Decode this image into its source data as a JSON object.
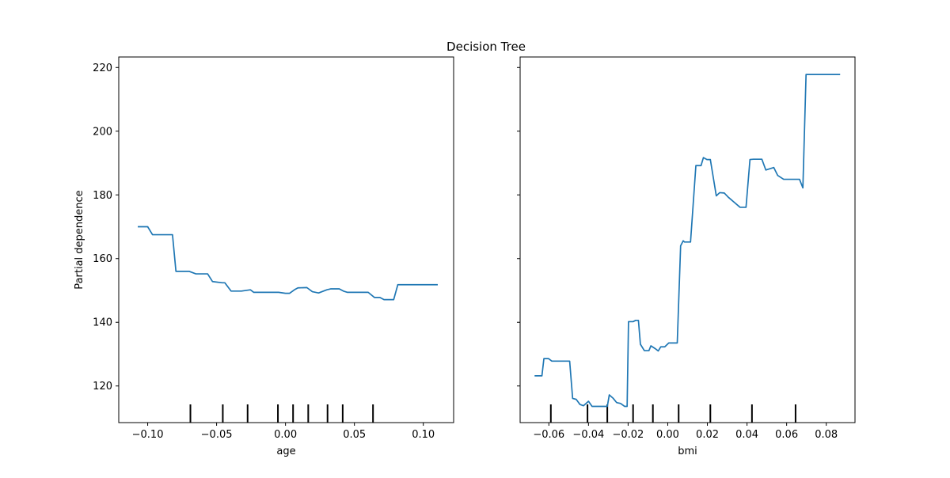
{
  "figure": {
    "title": "Decision Tree",
    "line_color": "#1f77b4"
  },
  "chart_data": [
    {
      "type": "line",
      "title": "",
      "xlabel": "age",
      "ylabel": "Partial dependence",
      "xlim": [
        -0.121,
        0.122
      ],
      "ylim": [
        108.5,
        223.3
      ],
      "xticks": [
        -0.1,
        -0.05,
        0.0,
        0.05,
        0.1
      ],
      "xtick_labels": [
        "−0.10",
        "−0.05",
        "0.00",
        "0.05",
        "0.10"
      ],
      "yticks": [
        120,
        140,
        160,
        180,
        200,
        220
      ],
      "ytick_labels": [
        "120",
        "140",
        "160",
        "180",
        "200",
        "220"
      ],
      "grid": false,
      "series": [
        {
          "x": [
            -0.1072,
            -0.1,
            -0.0965,
            -0.0905,
            -0.082,
            -0.0795,
            -0.072,
            -0.07,
            -0.065,
            -0.0565,
            -0.053,
            -0.046,
            -0.044,
            -0.0395,
            -0.032,
            -0.0255,
            -0.023,
            -0.016,
            -0.005,
            0.0,
            0.003,
            0.0065,
            0.009,
            0.0155,
            0.0195,
            0.024,
            0.03,
            0.033,
            0.039,
            0.042,
            0.045,
            0.049,
            0.06,
            0.0645,
            0.0685,
            0.0715,
            0.073,
            0.0785,
            0.0815,
            0.1105
          ],
          "y": [
            170,
            170,
            167.5,
            167.5,
            167.5,
            156,
            156,
            156,
            155.2,
            155.2,
            152.8,
            152.4,
            152.4,
            149.8,
            149.8,
            150.2,
            149.4,
            149.4,
            149.4,
            149.1,
            149.1,
            150.2,
            150.8,
            150.9,
            149.6,
            149.2,
            150.2,
            150.5,
            150.5,
            149.8,
            149.4,
            149.4,
            149.4,
            147.8,
            147.8,
            147.1,
            147.1,
            147.1,
            151.8,
            151.8
          ]
        }
      ],
      "rug_x": [
        -0.069,
        -0.0455,
        -0.0275,
        -0.0055,
        0.0055,
        0.0165,
        0.0305,
        0.0415,
        0.0635
      ]
    },
    {
      "type": "line",
      "title": "",
      "xlabel": "bmi",
      "ylabel": "",
      "xlim": [
        -0.0745,
        0.0945
      ],
      "ylim": [
        108.5,
        223.3
      ],
      "xticks": [
        -0.06,
        -0.04,
        -0.02,
        0.0,
        0.02,
        0.04,
        0.06,
        0.08
      ],
      "xtick_labels": [
        "−0.06",
        "−0.04",
        "−0.02",
        "0.00",
        "0.02",
        "0.04",
        "0.06",
        "0.08"
      ],
      "yticks": [
        120,
        140,
        160,
        180,
        200,
        220
      ],
      "ytick_labels": [
        "",
        "",
        "",
        "",
        "",
        ""
      ],
      "grid": false,
      "series": [
        {
          "x": [
            -0.0672,
            -0.0635,
            -0.0625,
            -0.0602,
            -0.0585,
            -0.057,
            -0.0545,
            -0.0512,
            -0.0495,
            -0.048,
            -0.0462,
            -0.0443,
            -0.0425,
            -0.04,
            -0.0382,
            -0.0355,
            -0.0332,
            -0.0305,
            -0.0295,
            -0.0275,
            -0.0258,
            -0.0238,
            -0.0218,
            -0.0205,
            -0.0198,
            -0.0175,
            -0.0162,
            -0.0148,
            -0.0138,
            -0.0118,
            -0.0095,
            -0.0085,
            -0.0065,
            -0.0048,
            -0.0035,
            -0.0015,
            0.0005,
            0.002,
            0.0048,
            0.0065,
            0.0078,
            0.0085,
            0.0115,
            0.0142,
            0.0168,
            0.018,
            0.0198,
            0.0215,
            0.0245,
            0.0262,
            0.0285,
            0.0305,
            0.0365,
            0.0395,
            0.0415,
            0.0432,
            0.0455,
            0.0475,
            0.0495,
            0.0535,
            0.0555,
            0.0585,
            0.0605,
            0.0665,
            0.0682,
            0.0698,
            0.087
          ],
          "y": [
            123.2,
            123.2,
            128.6,
            128.6,
            127.8,
            127.8,
            127.8,
            127.8,
            127.8,
            116.1,
            115.8,
            114.2,
            113.8,
            115.2,
            113.6,
            113.6,
            113.6,
            113.6,
            117.2,
            116.1,
            114.8,
            114.5,
            113.6,
            113.6,
            140.2,
            140.2,
            140.6,
            140.6,
            133.1,
            131.1,
            131.1,
            132.6,
            131.8,
            131,
            132.3,
            132.3,
            133.5,
            133.5,
            133.5,
            164,
            165.6,
            165.2,
            165.2,
            189.2,
            189.2,
            191.7,
            191.1,
            191.1,
            179.7,
            180.7,
            180.6,
            179.3,
            176.1,
            176.1,
            191.1,
            191.2,
            191.2,
            191.2,
            187.8,
            188.6,
            186.1,
            184.9,
            184.9,
            184.9,
            182.2,
            217.8,
            217.8
          ]
        }
      ],
      "rug_x": [
        -0.059,
        -0.0405,
        -0.0305,
        -0.0175,
        -0.0075,
        0.0055,
        0.0215,
        0.0425,
        0.0645
      ]
    }
  ]
}
